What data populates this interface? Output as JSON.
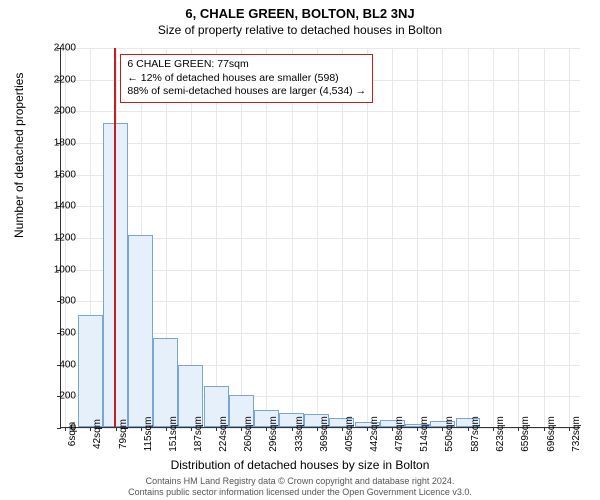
{
  "title": "6, CHALE GREEN, BOLTON, BL2 3NJ",
  "subtitle": "Size of property relative to detached houses in Bolton",
  "ylabel": "Number of detached properties",
  "xlabel": "Distribution of detached houses by size in Bolton",
  "footer_line1": "Contains HM Land Registry data © Crown copyright and database right 2024.",
  "footer_line2": "Contains public sector information licensed under the Open Government Licence v3.0.",
  "annotation": {
    "line1": "6 CHALE GREEN: 77sqm",
    "line2": "← 12% of detached houses are smaller (598)",
    "line3": "88% of semi-detached houses are larger (4,534) →"
  },
  "chart": {
    "type": "histogram",
    "background_color": "#ffffff",
    "grid_color": "#e8e8e8",
    "axis_color": "#333333",
    "bar_fill": "#e6f0fb",
    "bar_stroke": "#7aa5d6",
    "marker_color": "#c02020",
    "marker_x": 77,
    "annotation_border": "#c02020",
    "title_fontsize": 13,
    "subtitle_fontsize": 12,
    "label_fontsize": 12,
    "tick_fontsize": 10,
    "x_range": [
      0,
      750
    ],
    "y_range": [
      0,
      2400
    ],
    "y_ticks": [
      0,
      200,
      400,
      600,
      800,
      1000,
      1200,
      1400,
      1600,
      1800,
      2000,
      2200,
      2400
    ],
    "x_ticks": [
      6,
      42,
      79,
      115,
      151,
      187,
      224,
      260,
      296,
      333,
      369,
      405,
      442,
      478,
      514,
      550,
      587,
      623,
      659,
      696,
      732
    ],
    "x_tick_suffix": "sqm",
    "bar_width_units": 36,
    "bars": [
      {
        "x": 42,
        "count": 710
      },
      {
        "x": 79,
        "count": 1920
      },
      {
        "x": 115,
        "count": 1210
      },
      {
        "x": 151,
        "count": 560
      },
      {
        "x": 187,
        "count": 390
      },
      {
        "x": 224,
        "count": 260
      },
      {
        "x": 260,
        "count": 200
      },
      {
        "x": 296,
        "count": 110
      },
      {
        "x": 333,
        "count": 90
      },
      {
        "x": 369,
        "count": 85
      },
      {
        "x": 405,
        "count": 55
      },
      {
        "x": 442,
        "count": 30
      },
      {
        "x": 478,
        "count": 45
      },
      {
        "x": 514,
        "count": 20
      },
      {
        "x": 550,
        "count": 35
      },
      {
        "x": 587,
        "count": 55
      }
    ]
  }
}
